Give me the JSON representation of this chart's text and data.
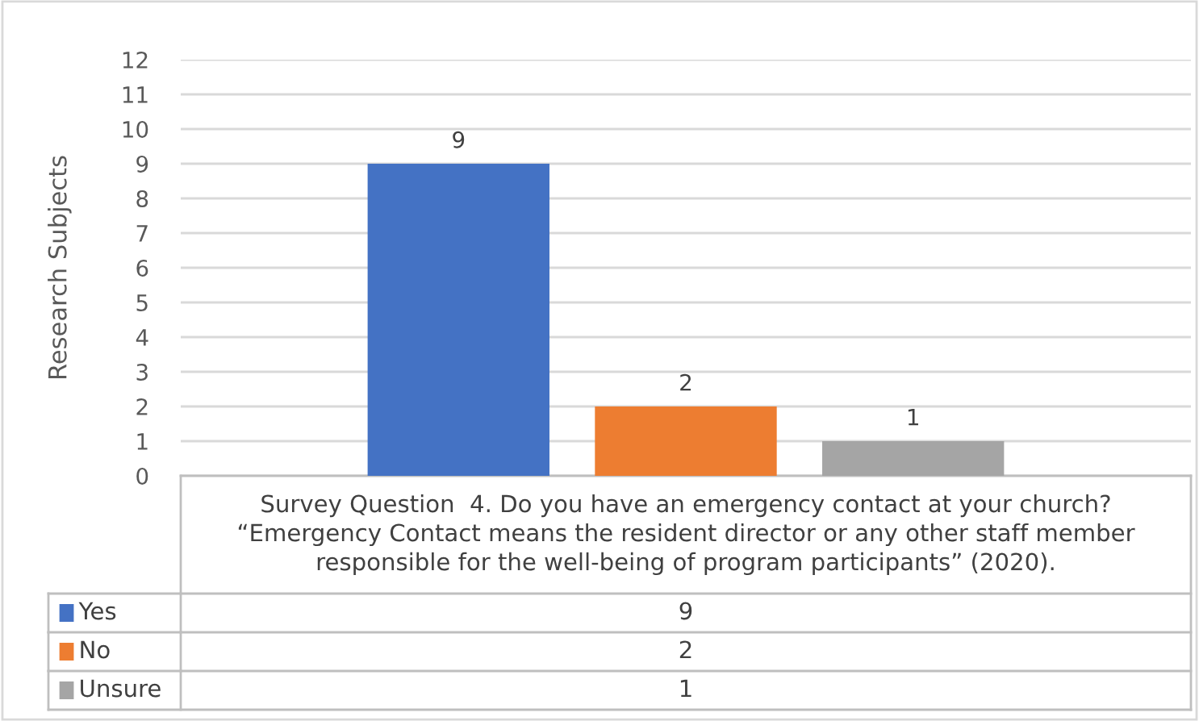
{
  "chart_data": {
    "type": "bar",
    "categories": [
      "Survey Question  4. Do you have an emergency contact at your church?\n“Emergency Contact means the resident director or any other staff member\nresponsible for the well-being of program participants” (2020)."
    ],
    "series": [
      {
        "name": "Yes",
        "color": "#4472c4",
        "values": [
          9
        ]
      },
      {
        "name": "No",
        "color": "#ed7d31",
        "values": [
          2
        ]
      },
      {
        "name": "Unsure",
        "color": "#a5a5a5",
        "values": [
          1
        ]
      }
    ],
    "ylabel": "Research Subjects",
    "ylim": [
      0,
      12
    ],
    "yticks": [
      0,
      1,
      2,
      3,
      4,
      5,
      6,
      7,
      8,
      9,
      10,
      11,
      12
    ],
    "grid": "y",
    "data_labels": true,
    "legend": "bottom",
    "annotations": [
      "9",
      "2",
      "1"
    ]
  }
}
